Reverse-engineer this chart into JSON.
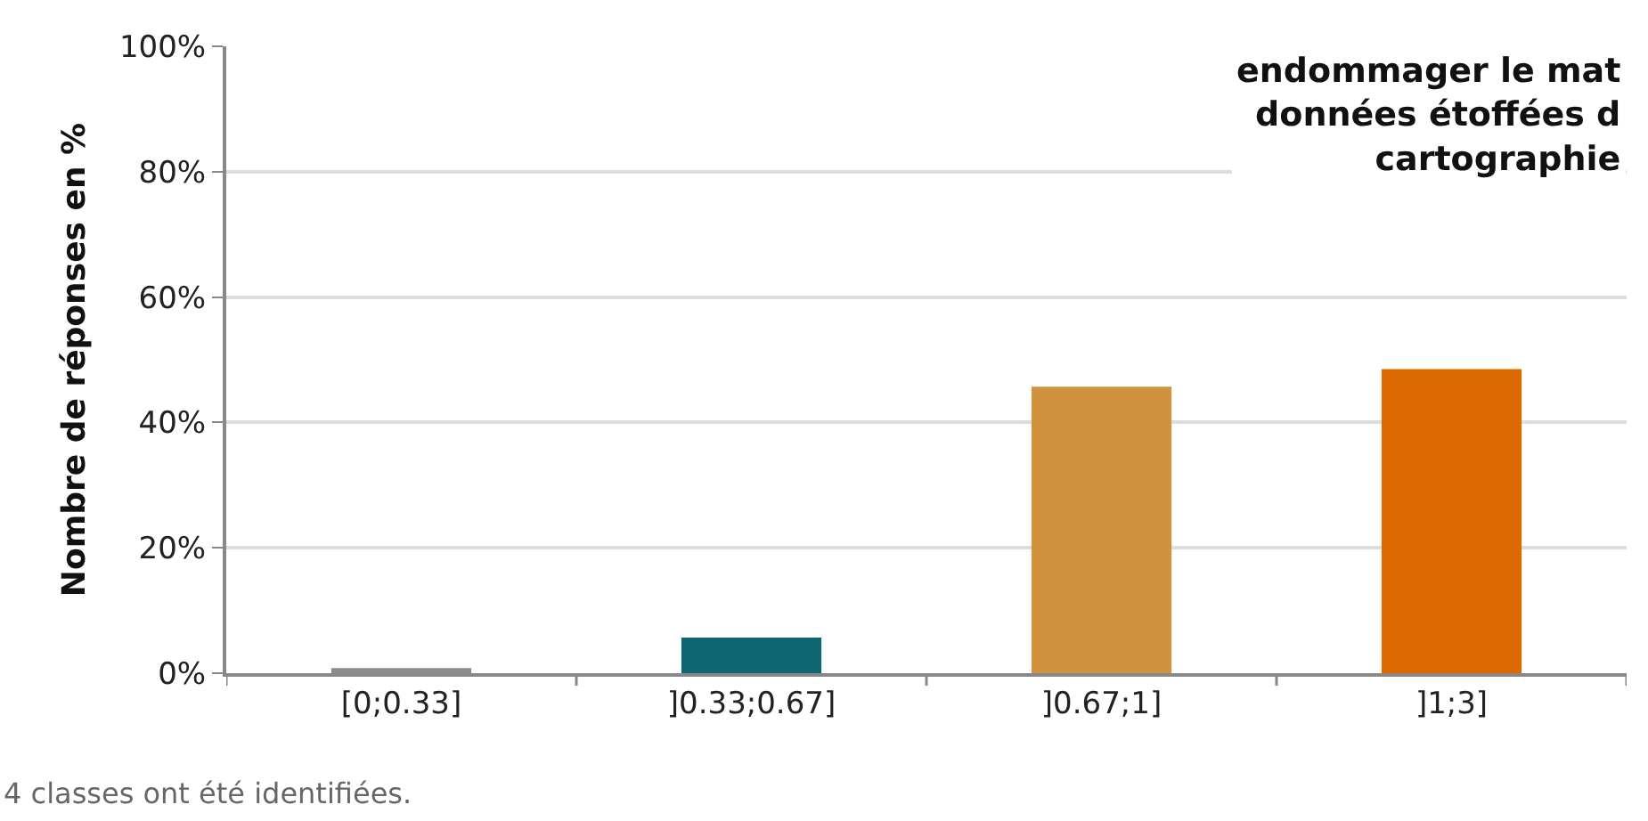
{
  "chart_data": {
    "type": "bar",
    "title": "endommager le mat\ndonnées étoffées d\ncartographie",
    "categories": [
      "[0;0.33]",
      "]0.33;0.67]",
      "]0.67;1]",
      "]1;3]"
    ],
    "values": [
      0.8,
      5.7,
      45.7,
      48.5
    ],
    "colors": [
      "#8c8c8c",
      "#0e6673",
      "#d0923c",
      "#dc6a00"
    ],
    "ylabel": "Nombre de réponses en %",
    "ylim": [
      0,
      100
    ],
    "yticks": [
      {
        "value": 0,
        "label": "0%"
      },
      {
        "value": 20,
        "label": "20%"
      },
      {
        "value": 40,
        "label": "40%"
      },
      {
        "value": 60,
        "label": "60%"
      },
      {
        "value": 80,
        "label": "80%"
      },
      {
        "value": 100,
        "label": "100%"
      }
    ],
    "grid": "y",
    "annotations": [
      "4 classes ont été identifiées."
    ]
  }
}
